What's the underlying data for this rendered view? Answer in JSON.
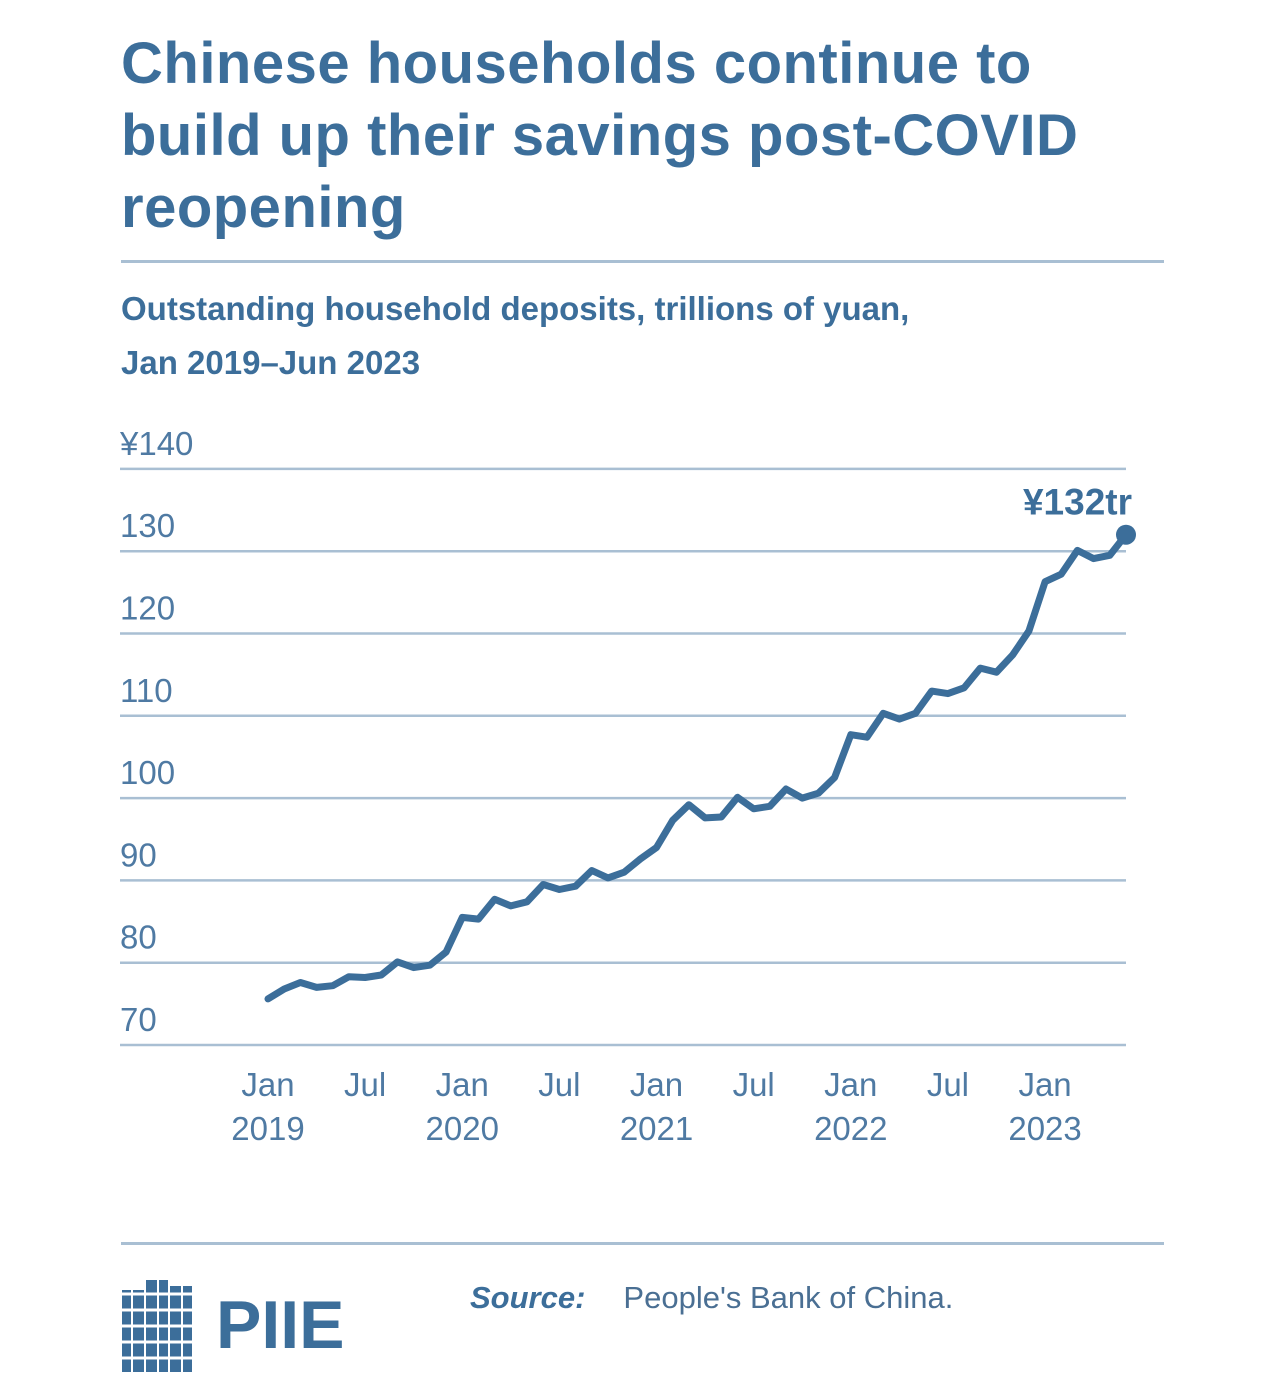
{
  "title": "Chinese households continue to build up their savings post-COVID reopening",
  "subtitle_line1": "Outstanding household deposits, trillions of yuan,",
  "subtitle_line2": "Jan 2019–Jun 2023",
  "colors": {
    "primary": "#3c6e9a",
    "grid": "#a9bfd3",
    "axis_text": "#4f7aa3",
    "source_text": "#4a6f93"
  },
  "chart_data": {
    "type": "line",
    "title": "Chinese households continue to build up their savings post-COVID reopening",
    "subtitle": "Outstanding household deposits, trillions of yuan, Jan 2019–Jun 2023",
    "xlabel": "",
    "ylabel": "",
    "ylim": [
      70,
      140
    ],
    "yticks": [
      70,
      80,
      90,
      100,
      110,
      120,
      130,
      140
    ],
    "ytick_labels": [
      "70",
      "80",
      "90",
      "100",
      "110",
      "120",
      "130",
      "¥140"
    ],
    "xticks": [
      {
        "date": "2019-01",
        "line1": "Jan",
        "line2": "2019"
      },
      {
        "date": "2019-07",
        "line1": "Jul",
        "line2": ""
      },
      {
        "date": "2020-01",
        "line1": "Jan",
        "line2": "2020"
      },
      {
        "date": "2020-07",
        "line1": "Jul",
        "line2": ""
      },
      {
        "date": "2021-01",
        "line1": "Jan",
        "line2": "2021"
      },
      {
        "date": "2021-07",
        "line1": "Jul",
        "line2": ""
      },
      {
        "date": "2022-01",
        "line1": "Jan",
        "line2": "2022"
      },
      {
        "date": "2022-07",
        "line1": "Jul",
        "line2": ""
      },
      {
        "date": "2023-01",
        "line1": "Jan",
        "line2": "2023"
      }
    ],
    "grid": true,
    "legend": "none",
    "annotation": {
      "date": "2023-06",
      "label": "¥132tr"
    },
    "series": [
      {
        "points": [
          [
            "2019-01",
            75.6
          ],
          [
            "2019-02",
            76.8
          ],
          [
            "2019-03",
            77.6
          ],
          [
            "2019-04",
            77.0
          ],
          [
            "2019-05",
            77.2
          ],
          [
            "2019-06",
            78.3
          ],
          [
            "2019-07",
            78.2
          ],
          [
            "2019-08",
            78.5
          ],
          [
            "2019-09",
            80.1
          ],
          [
            "2019-10",
            79.4
          ],
          [
            "2019-11",
            79.7
          ],
          [
            "2019-12",
            81.3
          ],
          [
            "2020-01",
            85.5
          ],
          [
            "2020-02",
            85.3
          ],
          [
            "2020-03",
            87.7
          ],
          [
            "2020-04",
            86.9
          ],
          [
            "2020-05",
            87.4
          ],
          [
            "2020-06",
            89.5
          ],
          [
            "2020-07",
            88.9
          ],
          [
            "2020-08",
            89.3
          ],
          [
            "2020-09",
            91.2
          ],
          [
            "2020-10",
            90.3
          ],
          [
            "2020-11",
            91.0
          ],
          [
            "2020-12",
            92.6
          ],
          [
            "2021-01",
            94.0
          ],
          [
            "2021-02",
            97.3
          ],
          [
            "2021-03",
            99.2
          ],
          [
            "2021-04",
            97.6
          ],
          [
            "2021-05",
            97.7
          ],
          [
            "2021-06",
            100.1
          ],
          [
            "2021-07",
            98.7
          ],
          [
            "2021-08",
            99.0
          ],
          [
            "2021-09",
            101.1
          ],
          [
            "2021-10",
            100.0
          ],
          [
            "2021-11",
            100.6
          ],
          [
            "2021-12",
            102.5
          ],
          [
            "2022-01",
            107.7
          ],
          [
            "2022-02",
            107.4
          ],
          [
            "2022-03",
            110.3
          ],
          [
            "2022-04",
            109.6
          ],
          [
            "2022-05",
            110.3
          ],
          [
            "2022-06",
            113.0
          ],
          [
            "2022-07",
            112.7
          ],
          [
            "2022-08",
            113.4
          ],
          [
            "2022-09",
            115.8
          ],
          [
            "2022-10",
            115.3
          ],
          [
            "2022-11",
            117.4
          ],
          [
            "2022-12",
            120.3
          ],
          [
            "2023-01",
            126.3
          ],
          [
            "2023-02",
            127.2
          ],
          [
            "2023-03",
            130.1
          ],
          [
            "2023-04",
            129.1
          ],
          [
            "2023-05",
            129.5
          ],
          [
            "2023-06",
            132.0
          ]
        ]
      }
    ]
  },
  "footer": {
    "logo_text": "PIIE",
    "source_label": "Source:",
    "source_text": "People's Bank of China."
  }
}
